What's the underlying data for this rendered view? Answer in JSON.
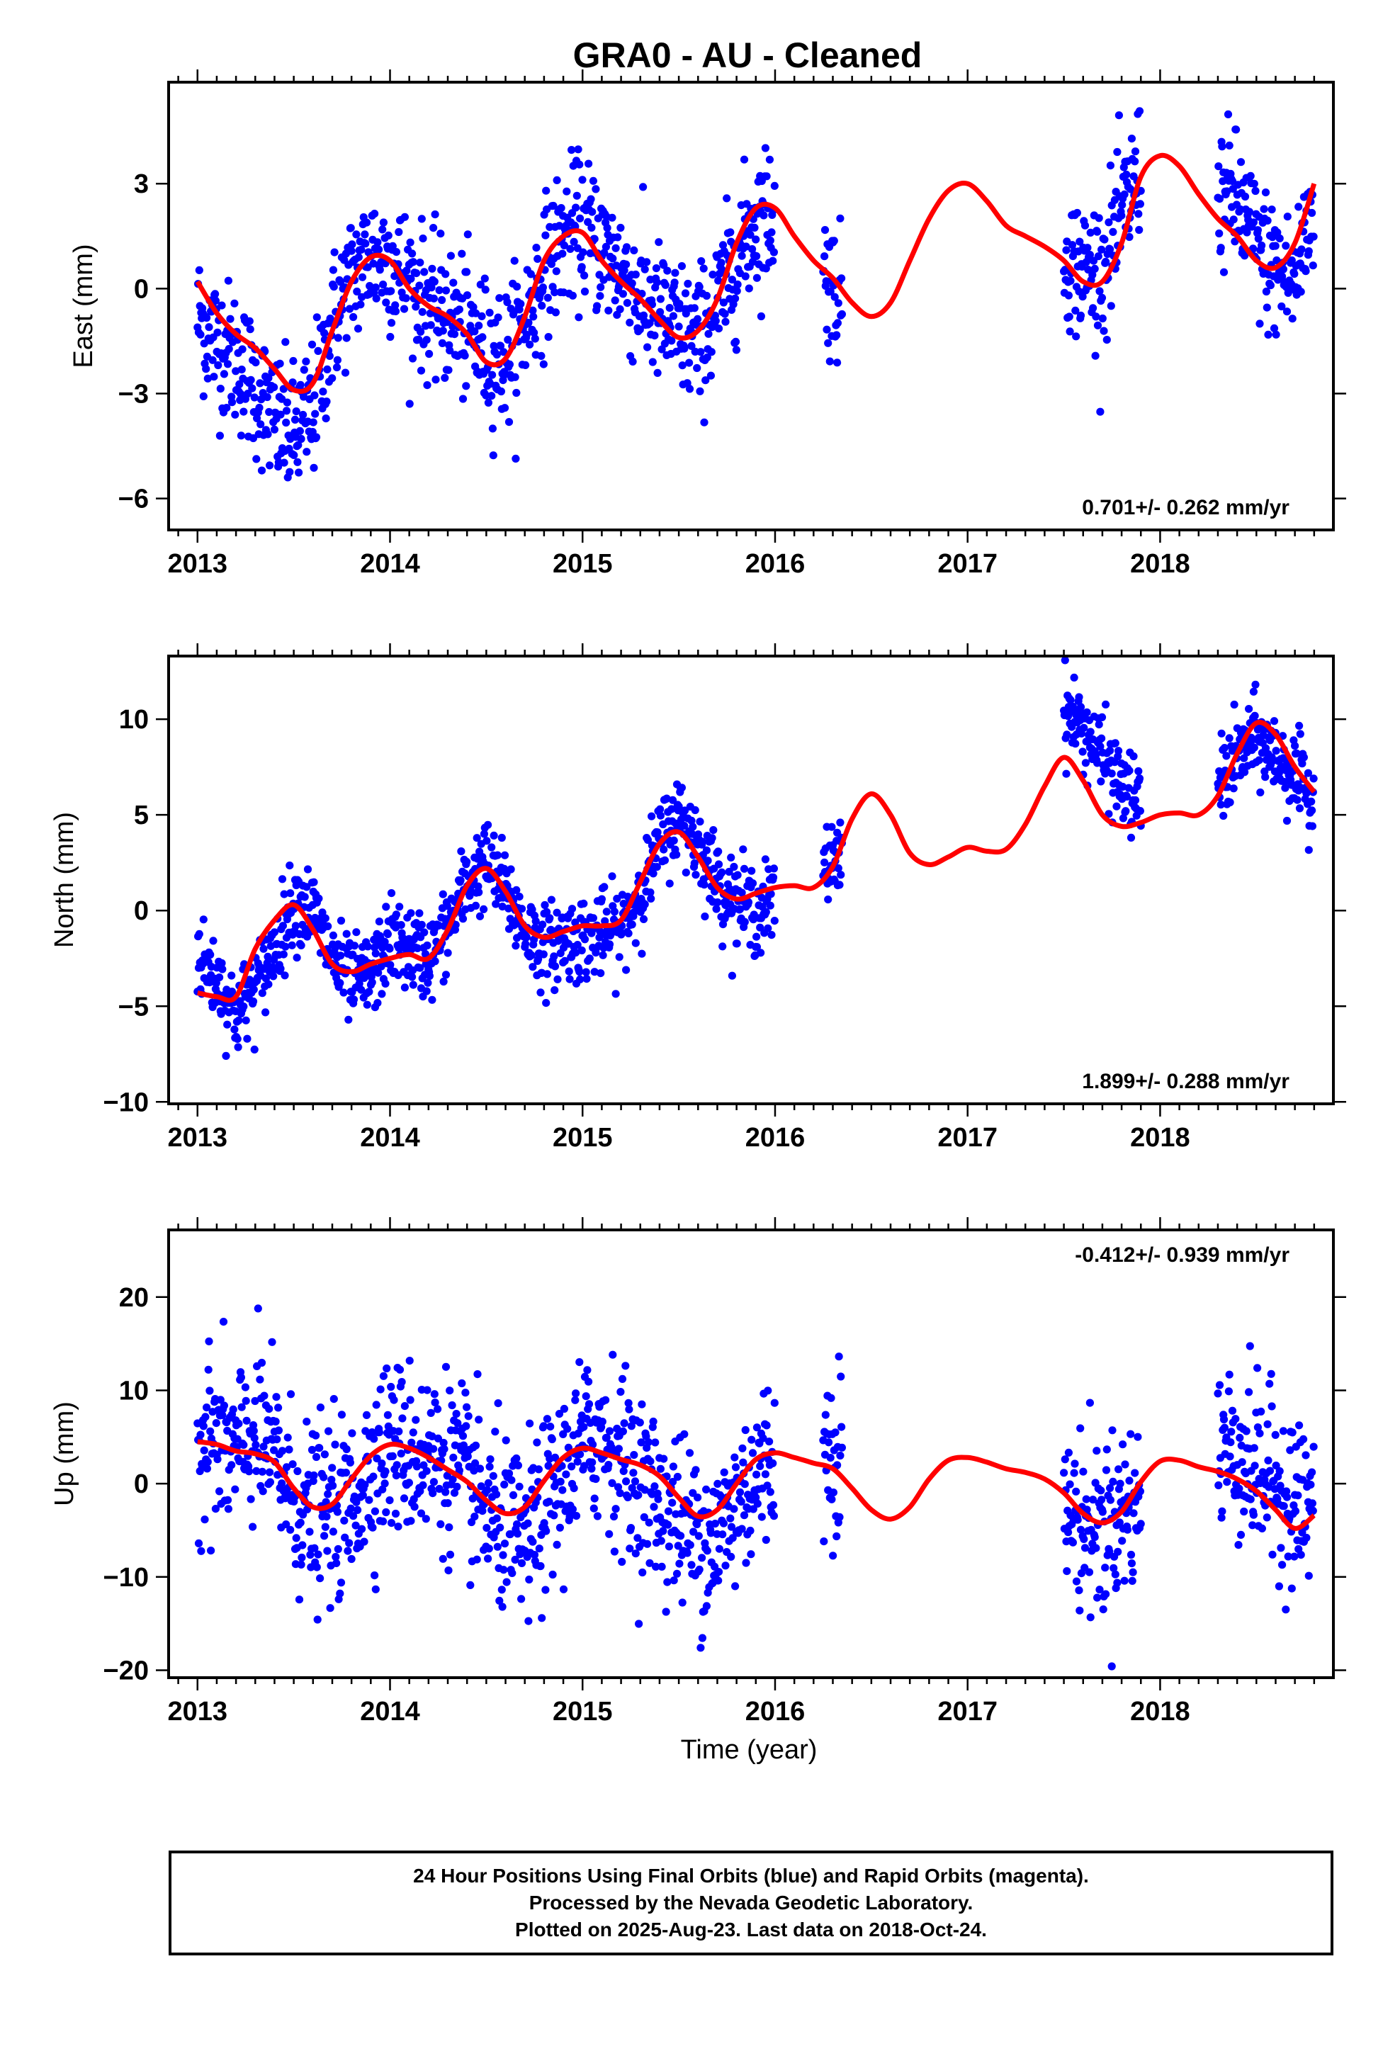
{
  "title": "GRA0  - AU - Cleaned",
  "xlabel": "Time (year)",
  "colors": {
    "final_orbits": "#0000ff",
    "rapid_orbits": "#ff00ff",
    "model": "#ff0000",
    "axes": "#000000"
  },
  "footer": {
    "line1": "24 Hour Positions Using Final Orbits (blue) and Rapid Orbits (magenta).",
    "line2": "Processed by the Nevada Geodetic Laboratory.",
    "line3": "Plotted on 2025-Aug-23. Last data on 2018-Oct-24."
  },
  "chart_data": [
    {
      "type": "scatter",
      "component": "east",
      "ylabel": "East (mm)",
      "xlim": [
        2012.85,
        2018.9
      ],
      "ylim": [
        -6.9,
        5.9
      ],
      "xticks": [
        2013,
        2014,
        2015,
        2016,
        2017,
        2018
      ],
      "yticks": [
        -6,
        -3,
        0,
        3
      ],
      "rate_label": "0.701+/- 0.262 mm/yr",
      "legend_position": "bottom-right",
      "observation_spans": [
        [
          2013.0,
          2016.0
        ],
        [
          2016.25,
          2016.35
        ],
        [
          2017.5,
          2017.9
        ],
        [
          2018.3,
          2018.8
        ]
      ],
      "series": [
        {
          "style": "dots",
          "x": [
            2013.0,
            2013.1,
            2013.2,
            2013.3,
            2013.4,
            2013.5,
            2013.6,
            2013.7,
            2013.8,
            2013.9,
            2014.0,
            2014.1,
            2014.2,
            2014.3,
            2014.4,
            2014.5,
            2014.6,
            2014.7,
            2014.8,
            2014.9,
            2015.0,
            2015.1,
            2015.2,
            2015.3,
            2015.4,
            2015.5,
            2015.6,
            2015.7,
            2015.8,
            2015.9,
            2016.0,
            2016.25,
            2016.35,
            2017.5,
            2017.6,
            2017.7,
            2017.8,
            2017.9,
            2018.3,
            2018.4,
            2018.5,
            2018.6,
            2018.7,
            2018.8
          ],
          "values": [
            -0.8,
            -1.5,
            -2.0,
            -2.8,
            -3.8,
            -4.2,
            -3.5,
            -1.0,
            0.3,
            1.0,
            0.8,
            0.2,
            -0.5,
            -0.8,
            -1.2,
            -1.8,
            -2.0,
            -1.0,
            0.5,
            1.5,
            1.8,
            1.2,
            0.5,
            -0.3,
            -0.8,
            -1.2,
            -1.5,
            -0.5,
            0.8,
            2.0,
            2.2,
            0.5,
            -0.5,
            1.0,
            0.5,
            0.5,
            2.0,
            3.5,
            2.8,
            2.5,
            1.2,
            0.5,
            0.2,
            2.5
          ]
        },
        {
          "style": "line",
          "x": [
            2013.0,
            2013.1,
            2013.2,
            2013.3,
            2013.4,
            2013.5,
            2013.6,
            2013.7,
            2013.8,
            2013.9,
            2014.0,
            2014.1,
            2014.2,
            2014.3,
            2014.4,
            2014.5,
            2014.6,
            2014.7,
            2014.8,
            2014.9,
            2015.0,
            2015.1,
            2015.2,
            2015.3,
            2015.4,
            2015.5,
            2015.6,
            2015.7,
            2015.8,
            2015.9,
            2016.0,
            2016.1,
            2016.2,
            2016.3,
            2016.4,
            2016.5,
            2016.6,
            2016.7,
            2016.8,
            2016.9,
            2017.0,
            2017.1,
            2017.2,
            2017.3,
            2017.4,
            2017.5,
            2017.6,
            2017.7,
            2017.8,
            2017.9,
            2018.0,
            2018.1,
            2018.2,
            2018.3,
            2018.4,
            2018.5,
            2018.6,
            2018.7,
            2018.8
          ],
          "values": [
            0.2,
            -0.7,
            -1.3,
            -1.7,
            -2.3,
            -2.9,
            -2.7,
            -1.2,
            0.2,
            0.9,
            0.8,
            0.0,
            -0.5,
            -0.8,
            -1.3,
            -2.1,
            -2.0,
            -0.8,
            0.8,
            1.5,
            1.6,
            0.8,
            0.2,
            -0.3,
            -0.9,
            -1.4,
            -1.2,
            -0.3,
            1.3,
            2.3,
            2.3,
            1.5,
            0.8,
            0.3,
            -0.4,
            -0.8,
            -0.4,
            0.8,
            2.0,
            2.8,
            3.0,
            2.5,
            1.8,
            1.5,
            1.2,
            0.8,
            0.2,
            0.2,
            1.3,
            3.2,
            3.8,
            3.5,
            2.7,
            2.0,
            1.5,
            0.8,
            0.6,
            1.3,
            3.0
          ]
        }
      ]
    },
    {
      "type": "scatter",
      "component": "north",
      "ylabel": "North (mm)",
      "xlim": [
        2012.85,
        2018.9
      ],
      "ylim": [
        -10.1,
        13.3
      ],
      "xticks": [
        2013,
        2014,
        2015,
        2016,
        2017,
        2018
      ],
      "yticks": [
        -10,
        -5,
        0,
        5,
        10
      ],
      "rate_label": "1.899+/- 0.288 mm/yr",
      "legend_position": "bottom-right",
      "observation_spans": [
        [
          2013.0,
          2016.0
        ],
        [
          2016.25,
          2016.35
        ],
        [
          2017.5,
          2017.9
        ],
        [
          2018.3,
          2018.8
        ]
      ],
      "series": [
        {
          "style": "dots",
          "x": [
            2013.0,
            2013.1,
            2013.2,
            2013.3,
            2013.4,
            2013.5,
            2013.6,
            2013.7,
            2013.8,
            2013.9,
            2014.0,
            2014.1,
            2014.2,
            2014.3,
            2014.4,
            2014.5,
            2014.6,
            2014.7,
            2014.8,
            2014.9,
            2015.0,
            2015.1,
            2015.2,
            2015.3,
            2015.4,
            2015.5,
            2015.6,
            2015.7,
            2015.8,
            2015.9,
            2016.0,
            2016.25,
            2016.35,
            2017.5,
            2017.6,
            2017.7,
            2017.8,
            2017.9,
            2018.3,
            2018.4,
            2018.5,
            2018.6,
            2018.7,
            2018.8
          ],
          "values": [
            -2.5,
            -3.5,
            -5.5,
            -4.0,
            -2.0,
            0.5,
            0.0,
            -2.5,
            -3.8,
            -3.5,
            -1.5,
            -2.0,
            -2.5,
            -1.0,
            1.5,
            2.5,
            1.0,
            -1.0,
            -2.0,
            -1.5,
            -1.5,
            -1.2,
            -1.0,
            1.0,
            3.5,
            5.0,
            3.5,
            1.5,
            0.5,
            0.0,
            0.5,
            2.0,
            3.5,
            10.5,
            9.5,
            8.0,
            6.5,
            5.5,
            6.5,
            8.0,
            9.0,
            8.0,
            7.0,
            5.5
          ]
        },
        {
          "style": "line",
          "x": [
            2013.0,
            2013.1,
            2013.2,
            2013.3,
            2013.4,
            2013.5,
            2013.6,
            2013.7,
            2013.8,
            2013.9,
            2014.0,
            2014.1,
            2014.2,
            2014.3,
            2014.4,
            2014.5,
            2014.6,
            2014.7,
            2014.8,
            2014.9,
            2015.0,
            2015.1,
            2015.2,
            2015.3,
            2015.4,
            2015.5,
            2015.6,
            2015.7,
            2015.8,
            2015.9,
            2016.0,
            2016.1,
            2016.2,
            2016.3,
            2016.4,
            2016.5,
            2016.6,
            2016.7,
            2016.8,
            2016.9,
            2017.0,
            2017.1,
            2017.2,
            2017.3,
            2017.4,
            2017.5,
            2017.6,
            2017.7,
            2017.8,
            2017.9,
            2018.0,
            2018.1,
            2018.2,
            2018.3,
            2018.4,
            2018.5,
            2018.6,
            2018.7,
            2018.8
          ],
          "values": [
            -4.3,
            -4.5,
            -4.5,
            -2.0,
            -0.5,
            0.3,
            -1.0,
            -2.8,
            -3.2,
            -2.8,
            -2.5,
            -2.3,
            -2.5,
            -1.0,
            1.3,
            2.2,
            1.0,
            -0.8,
            -1.4,
            -1.1,
            -0.8,
            -0.8,
            -0.5,
            1.5,
            3.5,
            4.1,
            2.8,
            1.2,
            0.6,
            0.9,
            1.2,
            1.3,
            1.2,
            2.3,
            4.8,
            6.1,
            5.0,
            3.0,
            2.4,
            2.8,
            3.3,
            3.1,
            3.2,
            4.5,
            6.5,
            8.0,
            6.8,
            5.0,
            4.4,
            4.6,
            5.0,
            5.1,
            5.0,
            6.0,
            8.2,
            9.8,
            9.2,
            7.5,
            6.2
          ]
        }
      ]
    },
    {
      "type": "scatter",
      "component": "up",
      "ylabel": "Up (mm)",
      "xlim": [
        2012.85,
        2018.9
      ],
      "ylim": [
        -20.8,
        27.2
      ],
      "xticks": [
        2013,
        2014,
        2015,
        2016,
        2017,
        2018
      ],
      "yticks": [
        -20,
        -10,
        0,
        10,
        20
      ],
      "rate_label": "-0.412+/- 0.939 mm/yr",
      "legend_position": "top-right",
      "observation_spans": [
        [
          2013.0,
          2016.0
        ],
        [
          2016.25,
          2016.35
        ],
        [
          2017.5,
          2017.9
        ],
        [
          2018.3,
          2018.8
        ]
      ],
      "series": [
        {
          "style": "dots",
          "x": [
            2013.0,
            2013.1,
            2013.2,
            2013.3,
            2013.4,
            2013.5,
            2013.6,
            2013.7,
            2013.8,
            2013.9,
            2014.0,
            2014.1,
            2014.2,
            2014.3,
            2014.4,
            2014.5,
            2014.6,
            2014.7,
            2014.8,
            2014.9,
            2015.0,
            2015.1,
            2015.2,
            2015.3,
            2015.4,
            2015.5,
            2015.6,
            2015.7,
            2015.8,
            2015.9,
            2016.0,
            2016.25,
            2016.35,
            2017.5,
            2017.6,
            2017.7,
            2017.8,
            2017.9,
            2018.3,
            2018.4,
            2018.5,
            2018.6,
            2018.7,
            2018.8
          ],
          "values": [
            5.0,
            4.5,
            3.0,
            5.5,
            3.0,
            -1.5,
            -3.5,
            -3.0,
            -2.5,
            2.0,
            4.0,
            3.5,
            3.0,
            2.5,
            0.5,
            -3.0,
            -5.0,
            -6.5,
            -3.0,
            0.5,
            4.0,
            5.5,
            3.0,
            0.0,
            -2.0,
            -4.0,
            -5.5,
            -6.0,
            -2.0,
            1.0,
            3.0,
            3.0,
            5.0,
            -3.5,
            -4.0,
            -5.0,
            -3.0,
            -2.0,
            4.0,
            3.5,
            1.5,
            0.0,
            -2.0,
            -3.0
          ]
        },
        {
          "style": "line",
          "x": [
            2013.0,
            2013.1,
            2013.2,
            2013.3,
            2013.4,
            2013.5,
            2013.6,
            2013.7,
            2013.8,
            2013.9,
            2014.0,
            2014.1,
            2014.2,
            2014.3,
            2014.4,
            2014.5,
            2014.6,
            2014.7,
            2014.8,
            2014.9,
            2015.0,
            2015.1,
            2015.2,
            2015.3,
            2015.4,
            2015.5,
            2015.6,
            2015.7,
            2015.8,
            2015.9,
            2016.0,
            2016.1,
            2016.2,
            2016.3,
            2016.4,
            2016.5,
            2016.6,
            2016.7,
            2016.8,
            2016.9,
            2017.0,
            2017.1,
            2017.2,
            2017.3,
            2017.4,
            2017.5,
            2017.6,
            2017.7,
            2017.8,
            2017.9,
            2018.0,
            2018.1,
            2018.2,
            2018.3,
            2018.4,
            2018.5,
            2018.6,
            2018.7,
            2018.8
          ],
          "values": [
            4.5,
            4.2,
            3.5,
            3.2,
            2.3,
            -0.5,
            -2.5,
            -2.2,
            0.5,
            3.0,
            4.2,
            3.8,
            2.8,
            1.5,
            0.2,
            -1.8,
            -3.2,
            -2.5,
            0.3,
            2.8,
            3.8,
            3.3,
            2.6,
            2.0,
            0.8,
            -1.5,
            -3.5,
            -2.8,
            0.0,
            2.6,
            3.3,
            2.8,
            2.2,
            1.6,
            -0.5,
            -2.8,
            -3.8,
            -2.5,
            0.5,
            2.5,
            2.8,
            2.3,
            1.6,
            1.2,
            0.5,
            -1.0,
            -3.2,
            -4.2,
            -3.0,
            0.2,
            2.4,
            2.5,
            1.8,
            1.3,
            0.5,
            -0.8,
            -2.8,
            -4.8,
            -3.4
          ]
        }
      ]
    }
  ]
}
